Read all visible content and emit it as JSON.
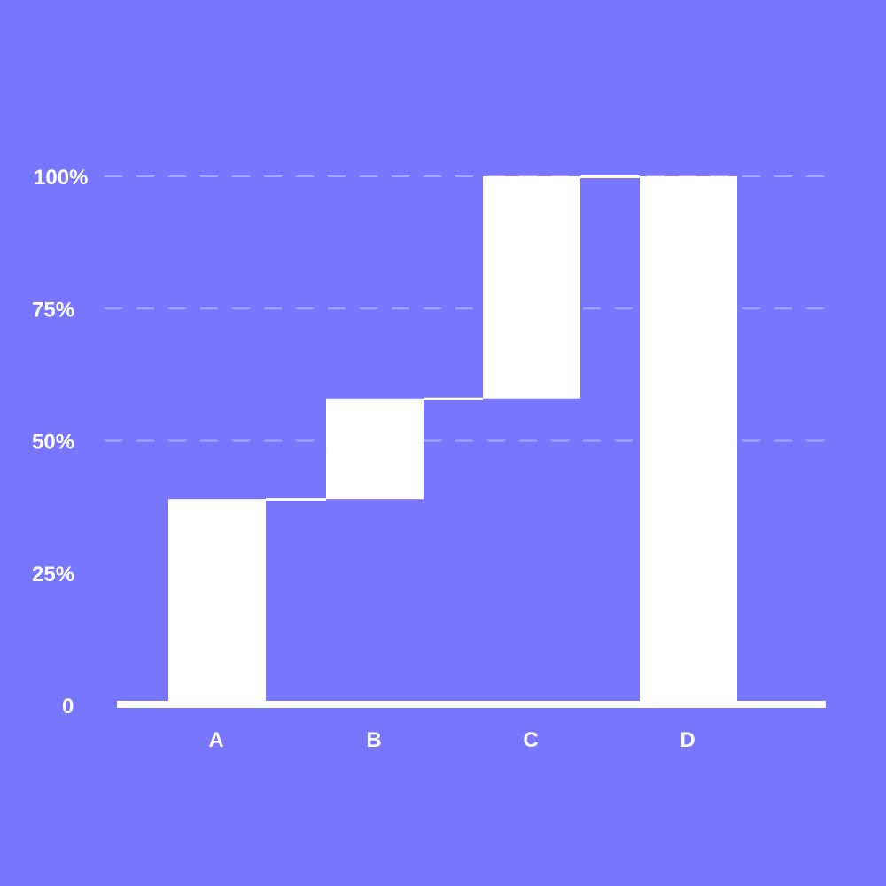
{
  "background_color": "#7876fe",
  "bar_color": "#ffffff",
  "grid_color": "#a9a8fb",
  "chart_data": {
    "type": "bar",
    "subtype": "waterfall",
    "title": "",
    "xlabel": "",
    "ylabel": "",
    "categories": [
      "A",
      "B",
      "C",
      "D"
    ],
    "bars": [
      {
        "category": "A",
        "start": 0,
        "end": 39
      },
      {
        "category": "B",
        "start": 39,
        "end": 58
      },
      {
        "category": "C",
        "start": 58,
        "end": 100
      },
      {
        "category": "D",
        "start": 0,
        "end": 100
      }
    ],
    "values": [
      39,
      19,
      42,
      100
    ],
    "y_ticks": [
      {
        "value": 0,
        "label": "0"
      },
      {
        "value": 25,
        "label": "25%"
      },
      {
        "value": 50,
        "label": "50%"
      },
      {
        "value": 75,
        "label": "75%"
      },
      {
        "value": 100,
        "label": "100%"
      }
    ],
    "dashed_gridlines_at": [
      50,
      75,
      100
    ],
    "ylim": [
      0,
      100
    ],
    "grid": true,
    "legend": "none"
  }
}
